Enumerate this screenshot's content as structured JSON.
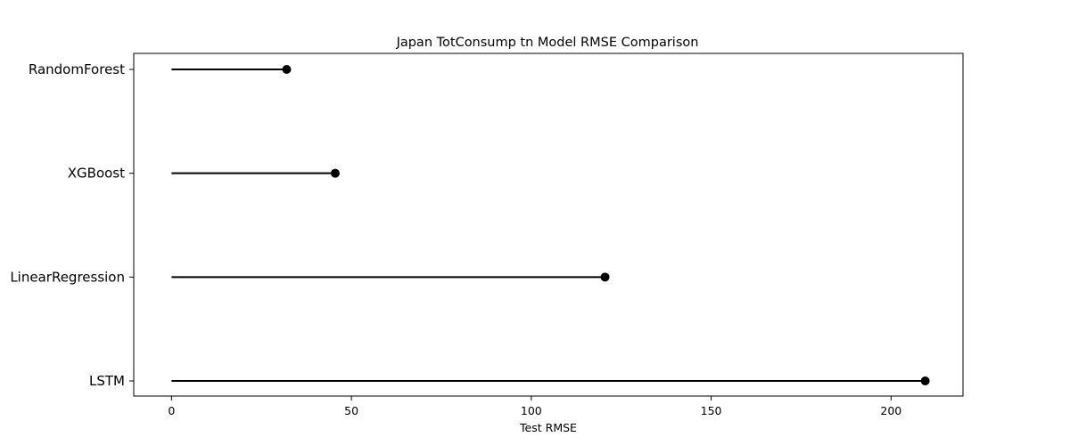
{
  "chart_data": {
    "type": "lollipop",
    "title": "Japan TotConsump tn Model RMSE Comparison",
    "xlabel": "Test RMSE",
    "ylabel": "",
    "xlim": [
      -10.5,
      220
    ],
    "xticks": [
      0,
      50,
      100,
      150,
      200
    ],
    "grid": false,
    "legend": "none",
    "categories": [
      "RandomForest",
      "XGBoost",
      "LinearRegression",
      "LSTM"
    ],
    "values": [
      32,
      45.5,
      120.5,
      209.5
    ],
    "colors": {
      "line": "#000000",
      "marker": "#000000",
      "axes": "#000000",
      "background": "#ffffff"
    }
  }
}
